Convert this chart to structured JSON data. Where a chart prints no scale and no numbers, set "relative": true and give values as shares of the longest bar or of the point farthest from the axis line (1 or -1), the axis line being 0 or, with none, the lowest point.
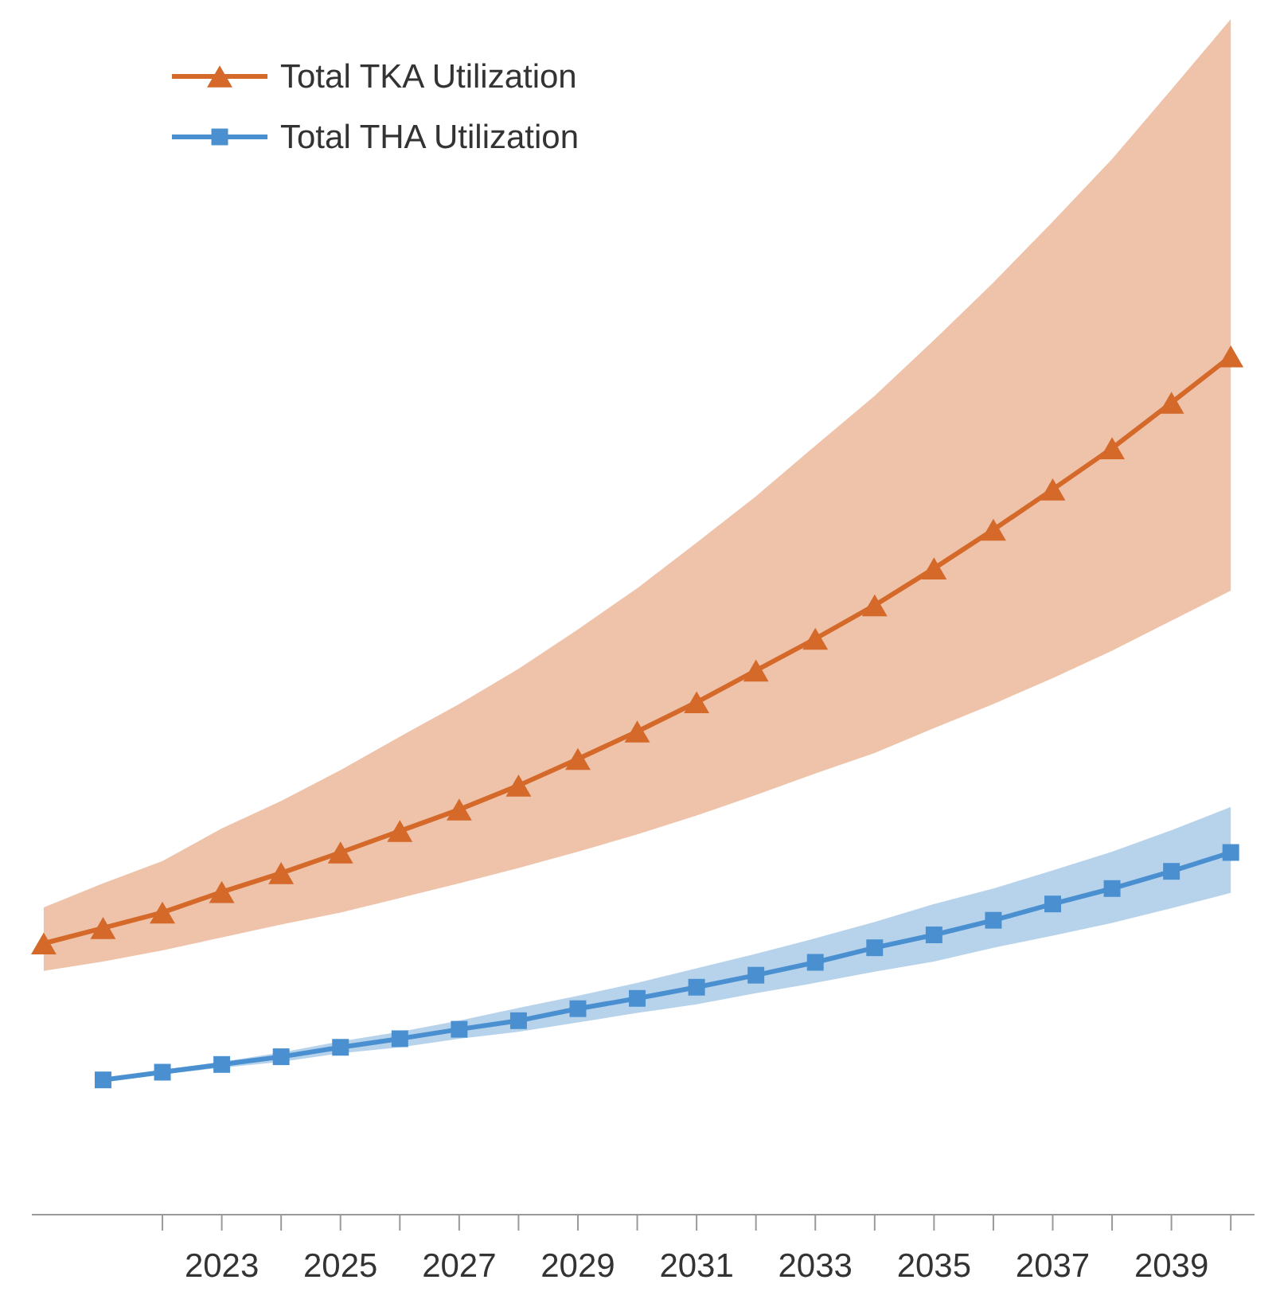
{
  "chart_data": {
    "type": "line",
    "relative": true,
    "x": [
      2020,
      2021,
      2022,
      2023,
      2024,
      2025,
      2026,
      2027,
      2028,
      2029,
      2030,
      2031,
      2032,
      2033,
      2034,
      2035,
      2036,
      2037,
      2038,
      2039,
      2040
    ],
    "xlim": [
      2019.8,
      2040.4
    ],
    "xticks": [
      {
        "value": 2022,
        "label": null
      },
      2023,
      {
        "value": 2024,
        "label": null
      },
      2025,
      {
        "value": 2026,
        "label": null
      },
      2027,
      {
        "value": 2028,
        "label": null
      },
      2029,
      {
        "value": 2030,
        "label": null
      },
      2031,
      {
        "value": 2032,
        "label": null
      },
      2033,
      {
        "value": 2034,
        "label": null
      },
      2035,
      {
        "value": 2036,
        "label": null
      },
      2037,
      {
        "value": 2038,
        "label": null
      },
      2039,
      {
        "value": 2040,
        "label": null
      }
    ],
    "legend": "top left",
    "series": [
      {
        "name": "Total TKA Utilization",
        "color": "#d4692a",
        "marker": "triangle",
        "values": [
          0.316,
          0.334,
          0.352,
          0.376,
          0.398,
          0.422,
          0.447,
          0.472,
          0.5,
          0.531,
          0.563,
          0.597,
          0.634,
          0.671,
          0.71,
          0.753,
          0.798,
          0.845,
          0.893,
          0.946,
          1
        ],
        "upper": [
          0.358,
          0.386,
          0.412,
          0.45,
          0.482,
          0.518,
          0.557,
          0.595,
          0.636,
          0.682,
          0.73,
          0.783,
          0.837,
          0.896,
          0.954,
          1.019,
          1.086,
          1.157,
          1.23,
          1.311,
          1.393
        ],
        "lower": [
          0.284,
          0.295,
          0.308,
          0.323,
          0.338,
          0.352,
          0.369,
          0.386,
          0.404,
          0.423,
          0.443,
          0.465,
          0.489,
          0.514,
          0.538,
          0.567,
          0.595,
          0.625,
          0.657,
          0.692,
          0.727
        ]
      },
      {
        "name": "Total THA Utilization",
        "color": "#4a90d0",
        "marker": "square",
        "x": [
          2021,
          2022,
          2023,
          2024,
          2025,
          2026,
          2027,
          2028,
          2029,
          2030,
          2031,
          2032,
          2033,
          2034,
          2035,
          2036,
          2037,
          2038,
          2039,
          2040
        ],
        "values": [
          0.157,
          0.166,
          0.175,
          0.184,
          0.195,
          0.205,
          0.216,
          0.226,
          0.24,
          0.252,
          0.265,
          0.279,
          0.294,
          0.311,
          0.326,
          0.343,
          0.362,
          0.38,
          0.4,
          0.422
        ],
        "upper": [
          0.157,
          0.169,
          0.178,
          0.189,
          0.202,
          0.213,
          0.226,
          0.241,
          0.255,
          0.27,
          0.287,
          0.304,
          0.322,
          0.341,
          0.362,
          0.38,
          0.401,
          0.423,
          0.448,
          0.475
        ],
        "lower": [
          0.157,
          0.164,
          0.171,
          0.178,
          0.188,
          0.195,
          0.205,
          0.213,
          0.224,
          0.235,
          0.245,
          0.258,
          0.27,
          0.283,
          0.295,
          0.311,
          0.325,
          0.34,
          0.357,
          0.375
        ]
      }
    ]
  }
}
